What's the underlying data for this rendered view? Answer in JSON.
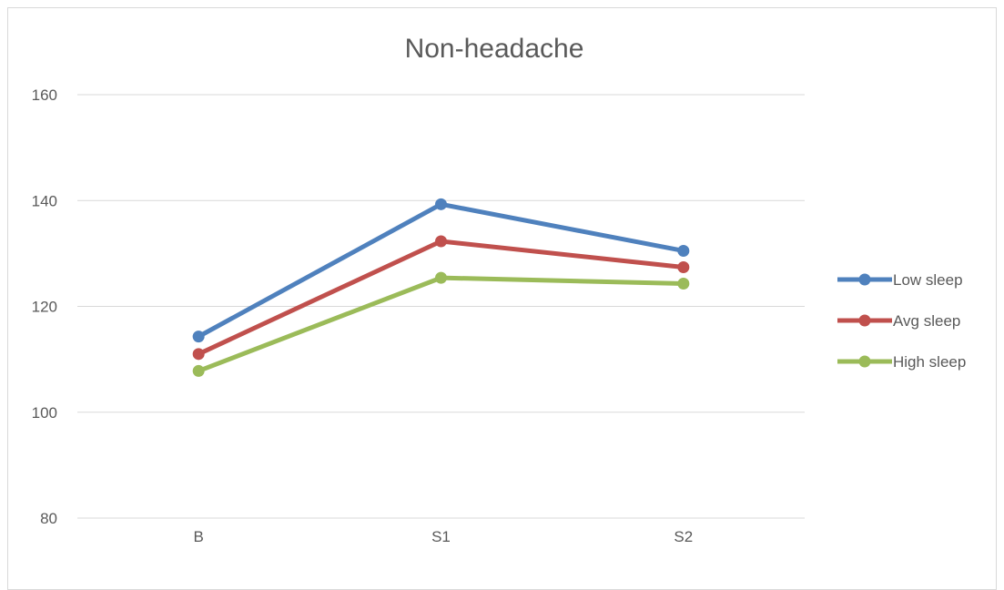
{
  "chart_data": {
    "type": "line",
    "title": "Non-headache",
    "xlabel": "",
    "ylabel": "",
    "categories": [
      "B",
      "S1",
      "S2"
    ],
    "ylim": [
      80,
      160
    ],
    "yticks": [
      80,
      100,
      120,
      140,
      160
    ],
    "grid": true,
    "legend_position": "right",
    "series": [
      {
        "name": "Low sleep",
        "values": [
          114.3,
          139.3,
          130.5
        ],
        "color": "#4f81bd"
      },
      {
        "name": "Avg sleep",
        "values": [
          111.0,
          132.3,
          127.4
        ],
        "color": "#c0504d"
      },
      {
        "name": "High sleep",
        "values": [
          107.8,
          125.4,
          124.3
        ],
        "color": "#9bbb59"
      }
    ]
  }
}
